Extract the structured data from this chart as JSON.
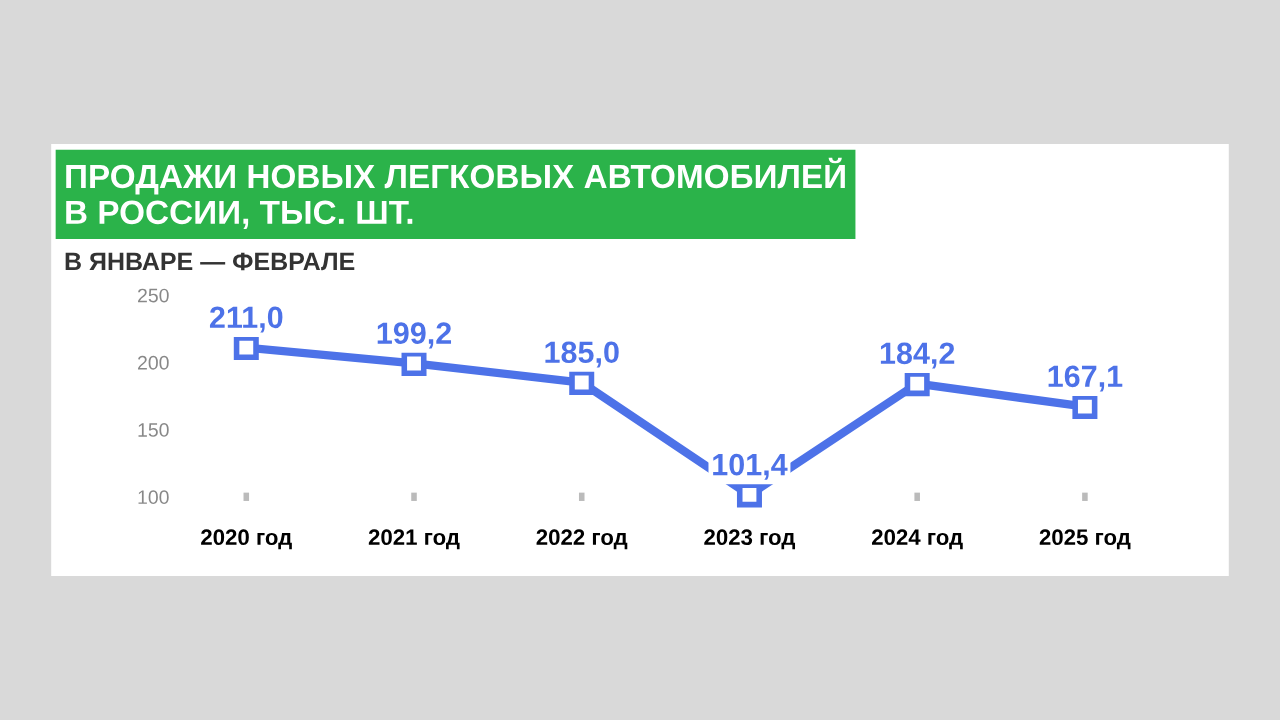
{
  "chart_data": {
    "type": "line",
    "title": "ПРОДАЖИ НОВЫХ ЛЕГКОВЫХ АВТОМОБИЛЕЙ\nВ РОССИИ, ТЫС. ШТ.",
    "subtitle": "В ЯНВАРЕ — ФЕВРАЛЕ",
    "categories": [
      "2020 год",
      "2021 год",
      "2022 год",
      "2023 год",
      "2024 год",
      "2025 год"
    ],
    "series": [
      {
        "color": "#4d72e8",
        "values": [
          211.0,
          199.2,
          185.0,
          101.4,
          184.2,
          167.1
        ],
        "value_labels": [
          "211,0",
          "199,2",
          "185,0",
          "101,4",
          "184,2",
          "167,1"
        ]
      }
    ],
    "ylim": [
      100,
      250
    ],
    "yticks": [
      100,
      150,
      200,
      250
    ],
    "grid": false,
    "marker": "square",
    "line_style": "solid"
  }
}
